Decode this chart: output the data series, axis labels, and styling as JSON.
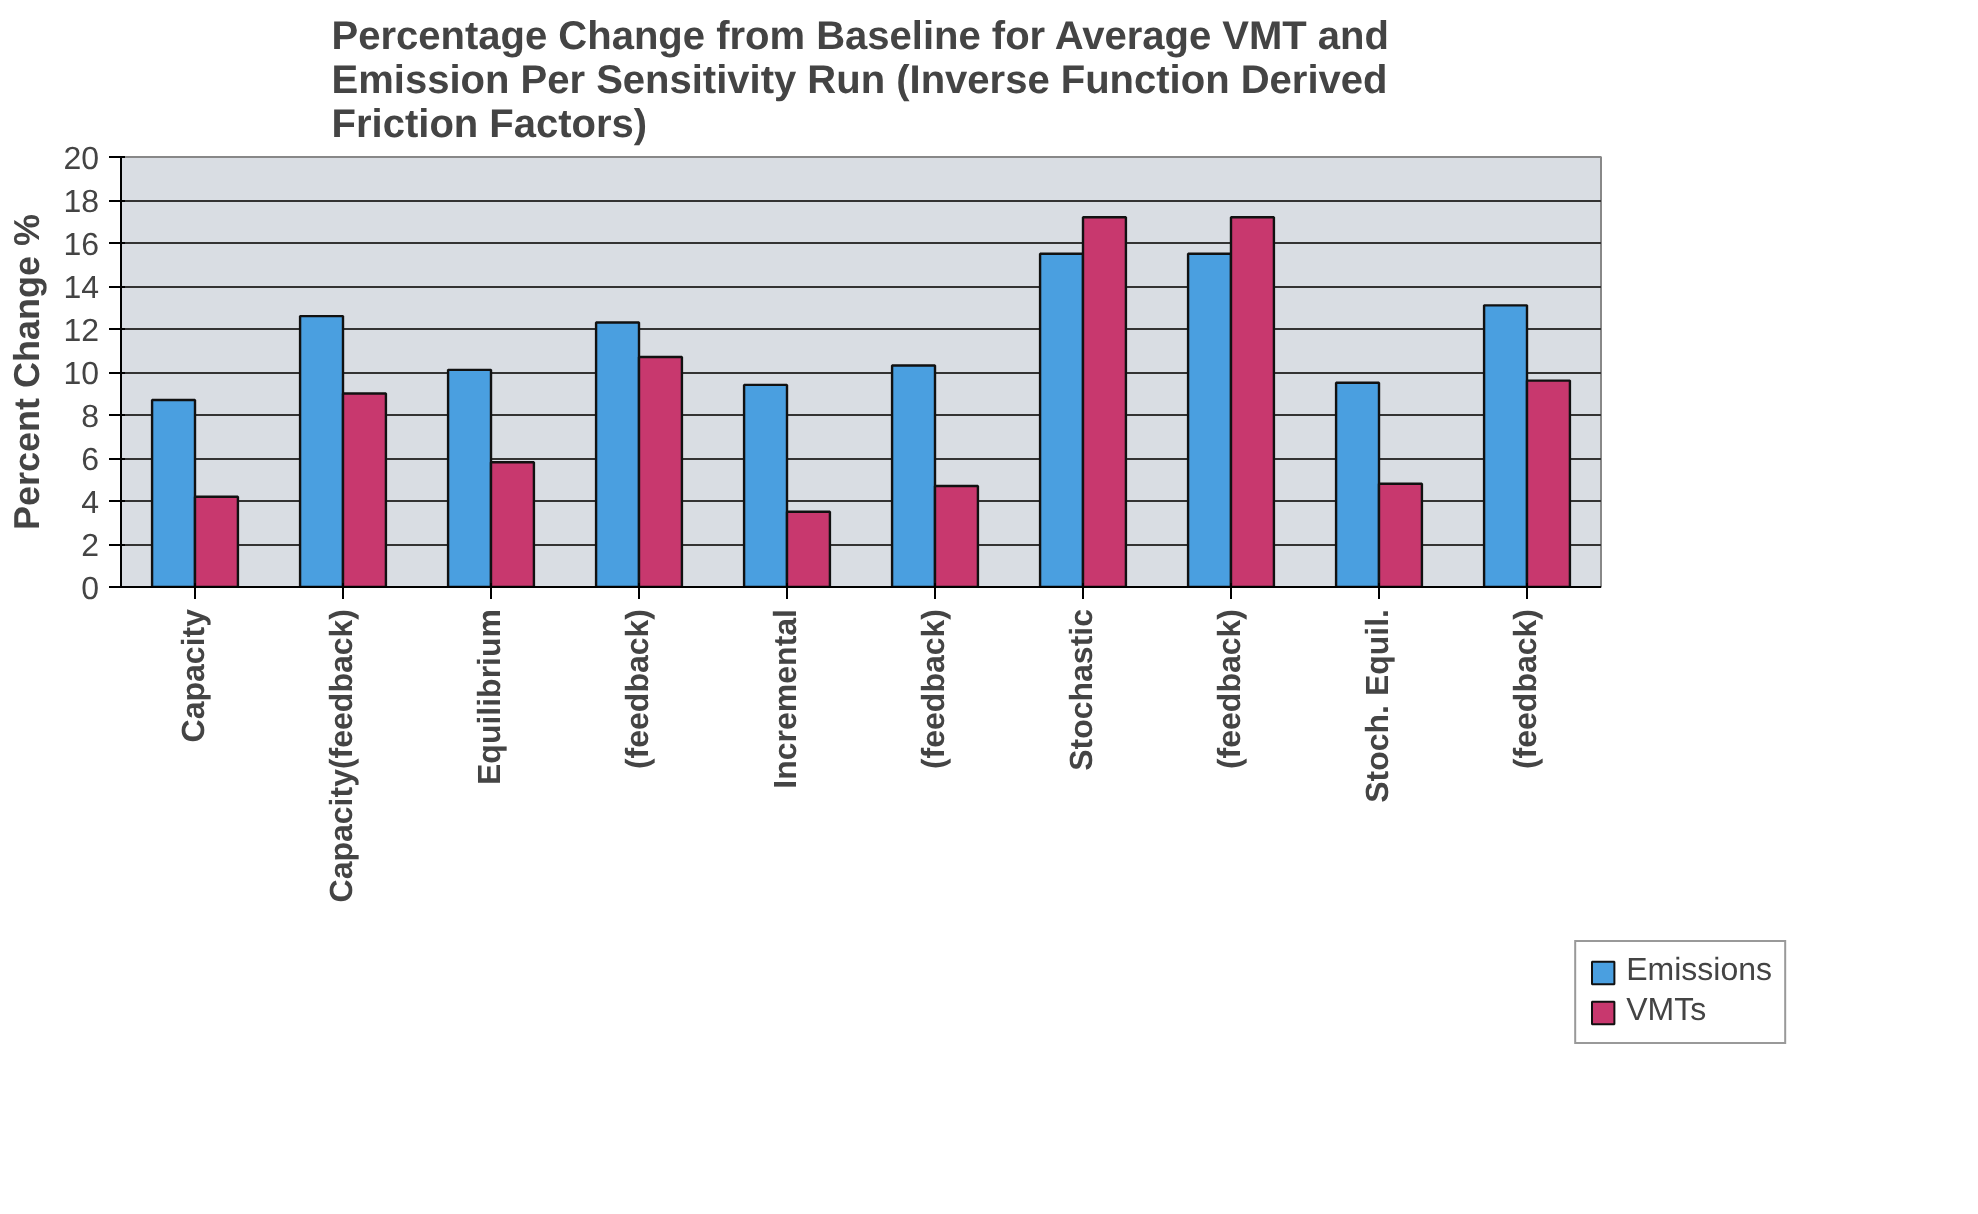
{
  "chart_data": {
    "type": "bar",
    "title": "Percentage Change from Baseline for Average VMT and Emission Per Sensitivity Run (Inverse Function Derived Friction Factors)",
    "ylabel": "Percent Change %",
    "categories": [
      "Capacity",
      "Capacity(feedback)",
      "Equilibrium",
      "(feedback)",
      "Incremental",
      "(feedback)",
      "Stochastic",
      "(feedback)",
      "Stoch. Equil.",
      "(feedback)"
    ],
    "series": [
      {
        "name": "Emissions",
        "color": "#4a9fe0",
        "values": [
          8.7,
          12.6,
          10.1,
          12.3,
          9.4,
          10.3,
          15.5,
          15.5,
          9.5,
          13.1
        ]
      },
      {
        "name": "VMTs",
        "color": "#c8386e",
        "values": [
          4.2,
          9.0,
          5.8,
          10.7,
          3.5,
          4.7,
          17.2,
          17.2,
          4.8,
          9.6
        ]
      }
    ],
    "ylim": [
      0,
      20
    ],
    "yticks": [
      0,
      2,
      4,
      6,
      8,
      10,
      12,
      14,
      16,
      18,
      20
    ],
    "grid": "y",
    "legend": "bottom right"
  }
}
